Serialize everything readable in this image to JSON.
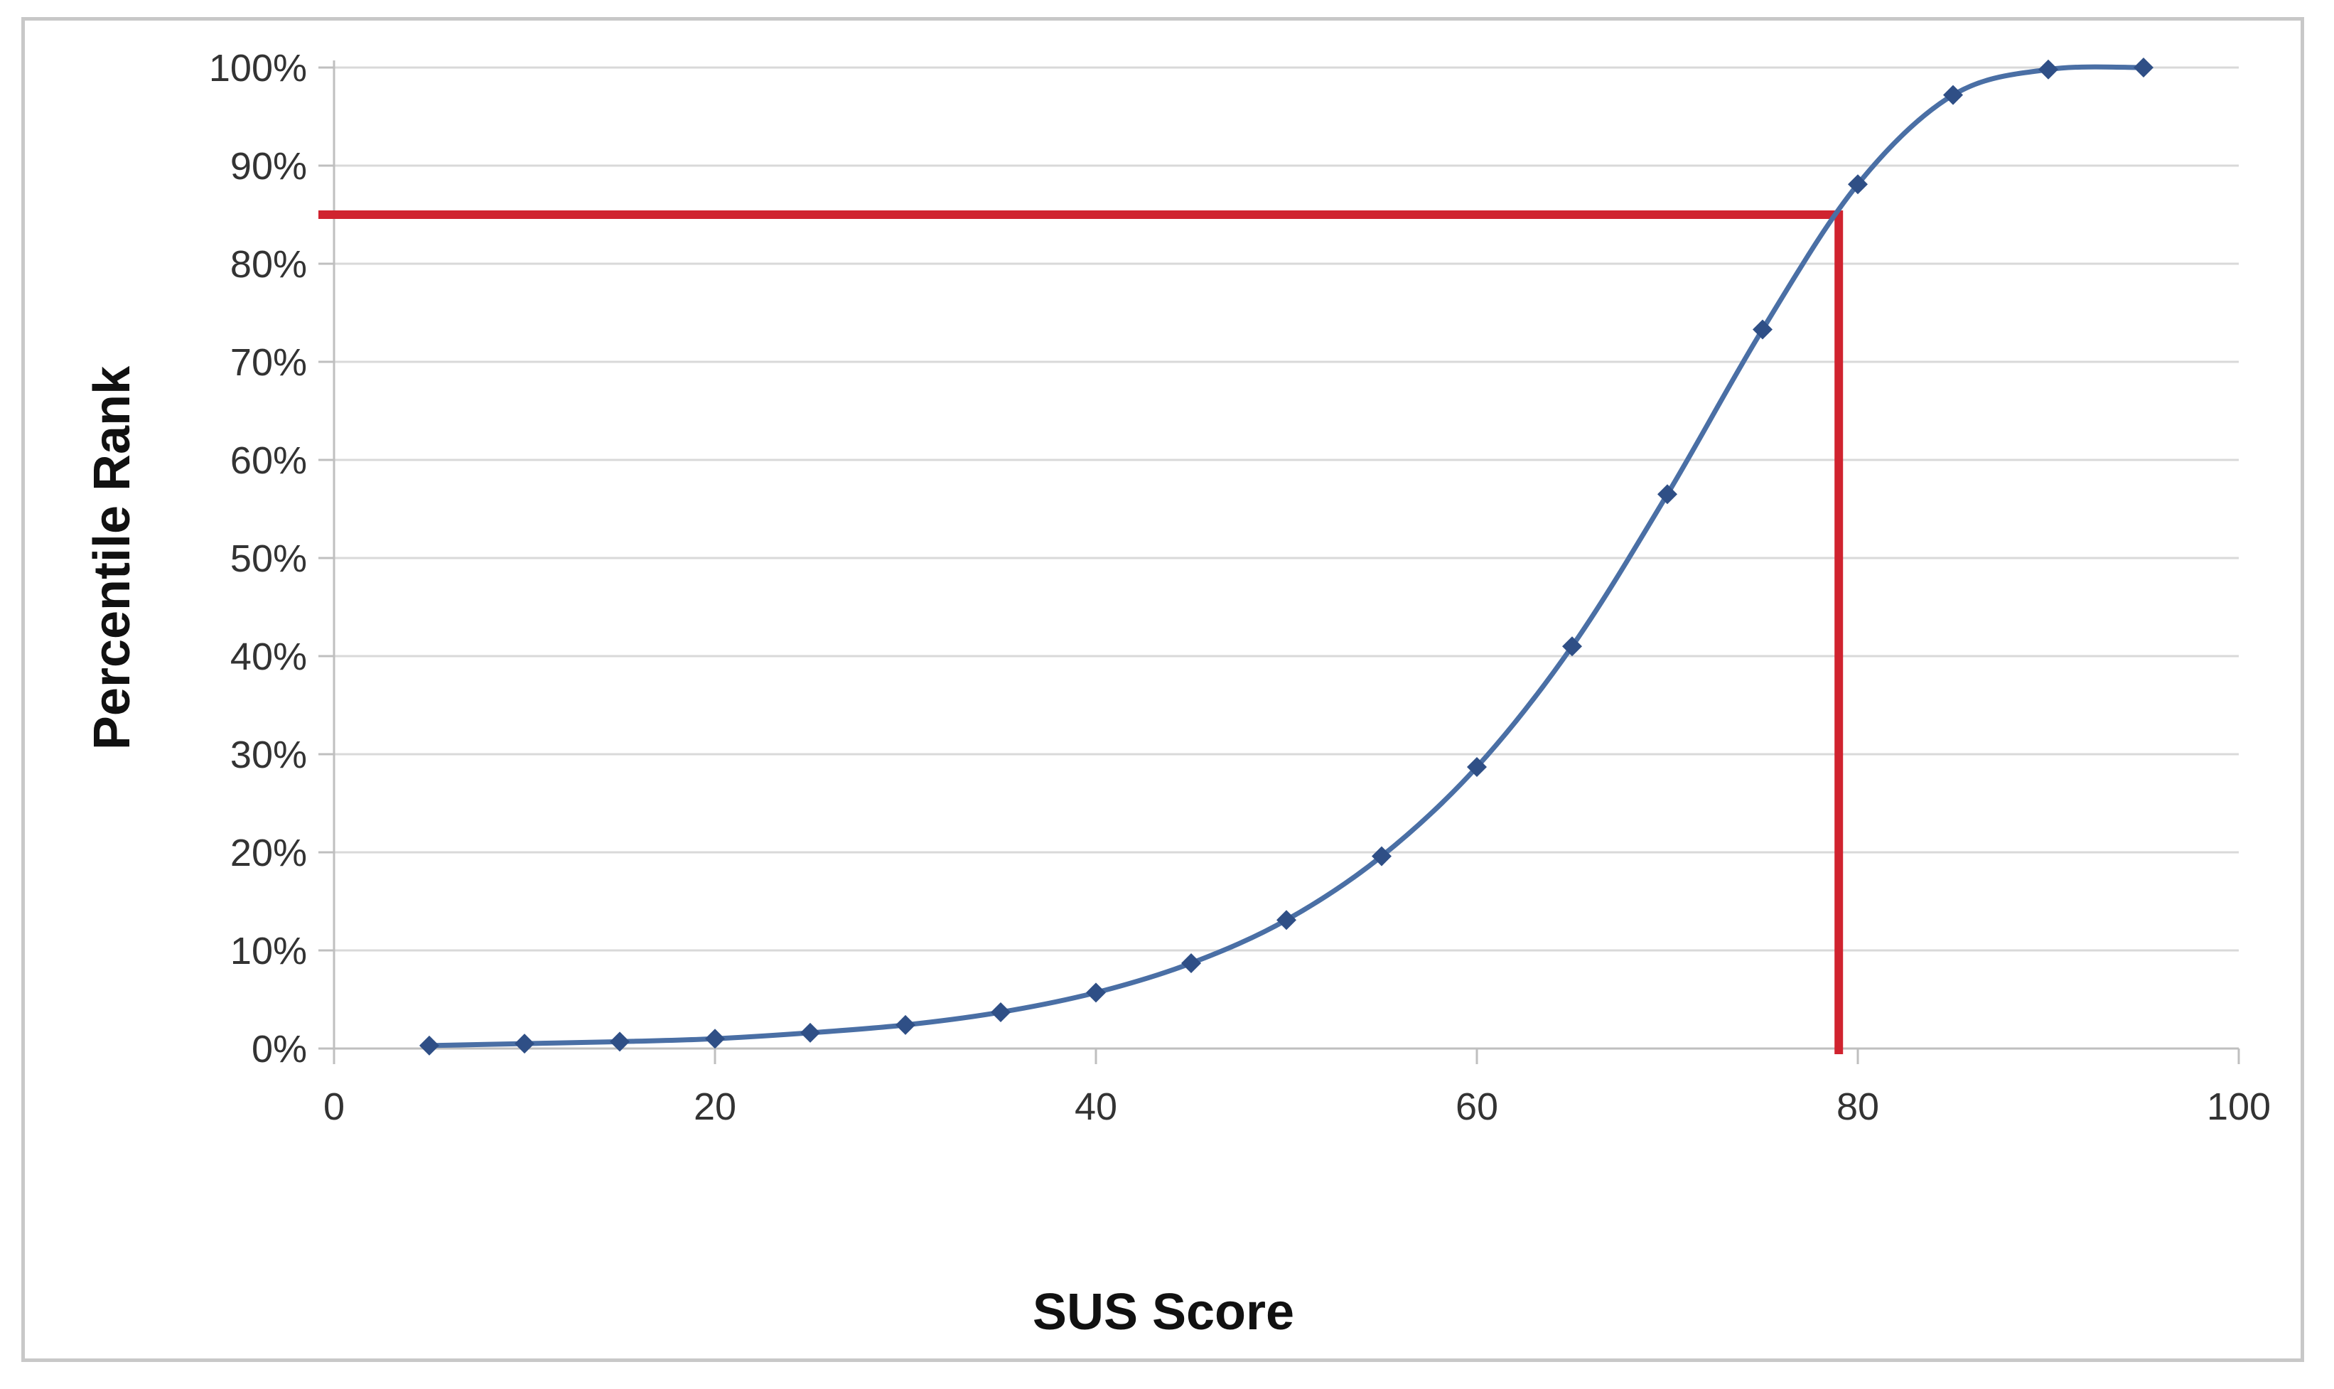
{
  "chart_data": {
    "type": "line",
    "title": "",
    "xlabel": "SUS Score",
    "ylabel": "Percentile Rank",
    "xlim": [
      0,
      100
    ],
    "ylim": [
      0,
      100
    ],
    "x_ticks": [
      0,
      20,
      40,
      60,
      80,
      100
    ],
    "x_tick_labels": [
      "0",
      "20",
      "40",
      "60",
      "80",
      "100"
    ],
    "y_ticks": [
      0,
      10,
      20,
      30,
      40,
      50,
      60,
      70,
      80,
      90,
      100
    ],
    "y_tick_labels": [
      "0%",
      "10%",
      "20%",
      "30%",
      "40%",
      "50%",
      "60%",
      "70%",
      "80%",
      "90%",
      "100%"
    ],
    "grid": "horizontal",
    "legend": "none",
    "series": [
      {
        "x": [
          5,
          10,
          15,
          20,
          25,
          30,
          35,
          40,
          45,
          50,
          55,
          60,
          65,
          70,
          75,
          80,
          85,
          90,
          95
        ],
        "values": [
          0.3,
          0.5,
          0.7,
          1.0,
          1.6,
          2.4,
          3.7,
          5.7,
          8.7,
          13.1,
          19.6,
          28.7,
          41.0,
          56.5,
          73.3,
          88.1,
          97.2,
          99.8,
          100
        ]
      }
    ],
    "reference_lines": {
      "horizontal_y": 85,
      "vertical_x": 79
    },
    "colors": {
      "series": "#4a6fa5",
      "marker": "#2f4f86",
      "reference": "#d0232f",
      "grid": "#d9d9d9",
      "axis": "#bfbfbf"
    }
  }
}
